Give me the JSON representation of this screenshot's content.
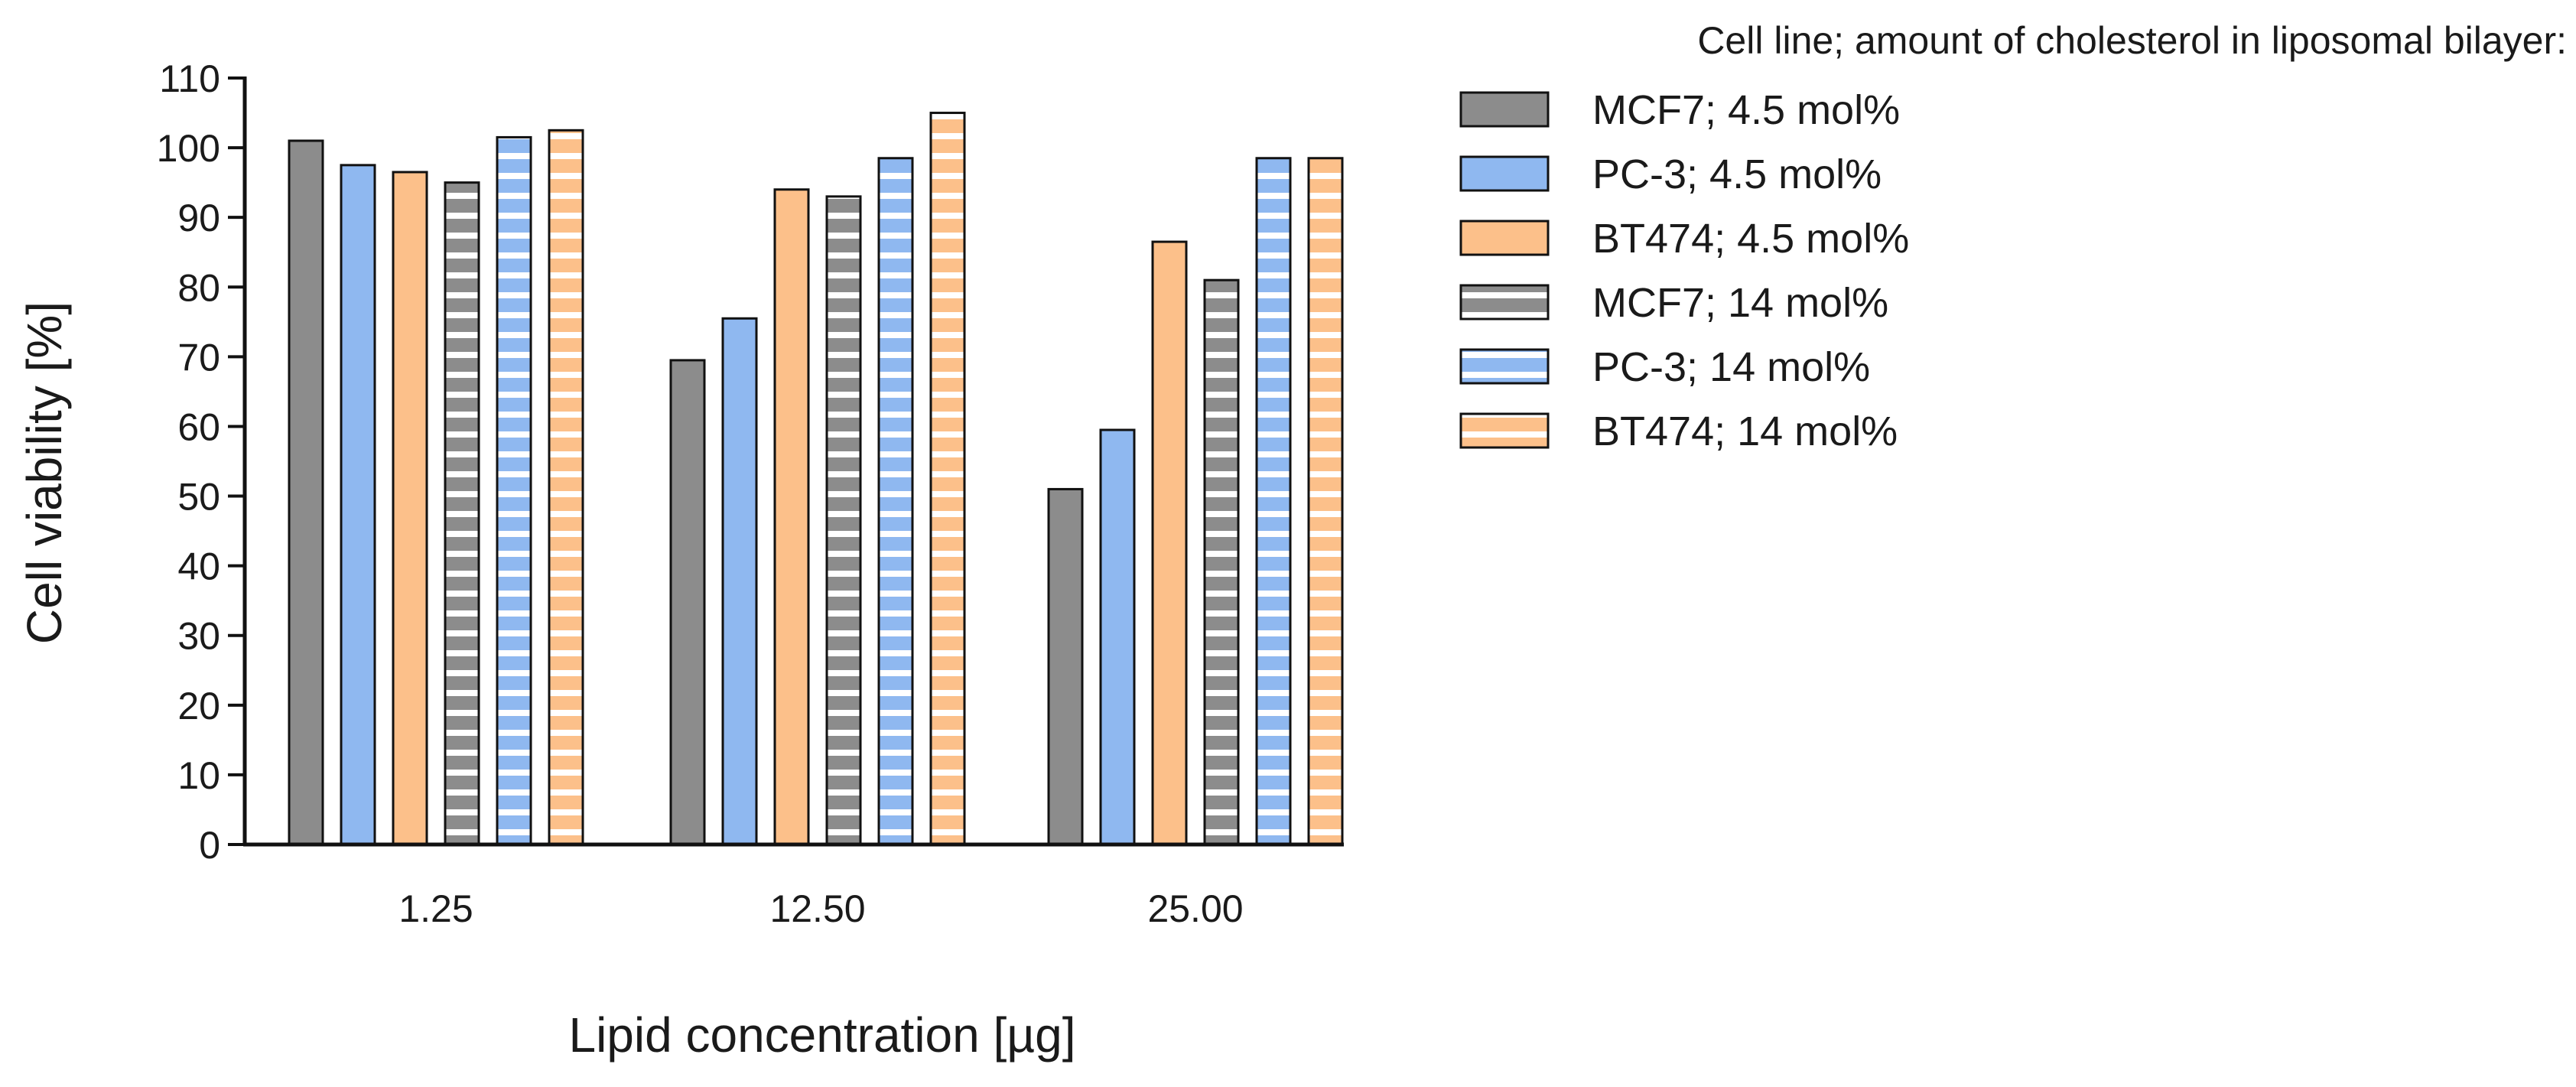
{
  "chart_data": {
    "type": "bar",
    "title": "",
    "xlabel": "Lipid concentration [µg]",
    "ylabel": "Cell viability [%]",
    "ylim": [
      0,
      110
    ],
    "yticks": [
      "0",
      "10",
      "20",
      "30",
      "40",
      "50",
      "60",
      "70",
      "80",
      "90",
      "100",
      "110"
    ],
    "categories": [
      "1.25",
      "12.50",
      "25.00"
    ],
    "legend_title": "Cell line; amount of cholesterol in liposomal bilayer:",
    "legend_position": "top-right, outside plot",
    "series": [
      {
        "name": "MCF7; 4.5 mol%",
        "values": [
          101,
          69.5,
          51
        ],
        "color": "#8c8c8c",
        "pattern": "solid"
      },
      {
        "name": "PC-3; 4.5 mol%",
        "values": [
          97.5,
          75.5,
          59.5
        ],
        "color": "#8fb8f0",
        "pattern": "solid"
      },
      {
        "name": "BT474; 4.5 mol%",
        "values": [
          96.5,
          94,
          86.5
        ],
        "color": "#fcc08a",
        "pattern": "solid"
      },
      {
        "name": "MCF7; 14 mol%",
        "values": [
          95,
          93,
          81
        ],
        "color": "#8c8c8c",
        "pattern": "horizontal-stripes"
      },
      {
        "name": "PC-3; 14 mol%",
        "values": [
          101.5,
          98.5,
          98.5
        ],
        "color": "#8fb8f0",
        "pattern": "horizontal-stripes"
      },
      {
        "name": "BT474; 14 mol%",
        "values": [
          102.5,
          105,
          98.5
        ],
        "color": "#fcc08a",
        "pattern": "horizontal-stripes"
      }
    ]
  }
}
